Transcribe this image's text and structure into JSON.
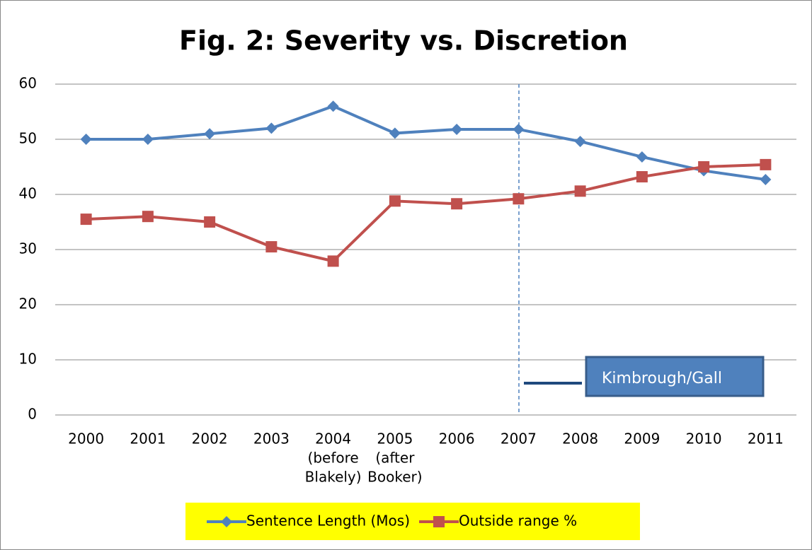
{
  "chart_data": {
    "type": "line",
    "title": "Fig. 2: Severity vs. Discretion",
    "categories": [
      [
        "2000"
      ],
      [
        "2001"
      ],
      [
        "2002"
      ],
      [
        "2003"
      ],
      [
        "2004",
        "(before",
        "Blakely)"
      ],
      [
        "2005",
        "(after",
        "Booker)"
      ],
      [
        "2006"
      ],
      [
        "2007"
      ],
      [
        "2008"
      ],
      [
        "2009"
      ],
      [
        "2010"
      ],
      [
        "2011"
      ]
    ],
    "series": [
      {
        "name": "Sentence Length (Mos)",
        "color": "#4f81bd",
        "marker": "diamond",
        "values": [
          50,
          50,
          51,
          52,
          56,
          51.1,
          51.8,
          51.8,
          49.6,
          46.8,
          44.3,
          42.7
        ]
      },
      {
        "name": "Outside range %",
        "color": "#c0504d",
        "marker": "square",
        "values": [
          35.5,
          36,
          35,
          30.5,
          27.9,
          38.8,
          38.3,
          39.2,
          40.6,
          43.2,
          45,
          45.4
        ]
      }
    ],
    "ylim": [
      0,
      60
    ],
    "yticks": [
      0,
      10,
      20,
      30,
      40,
      50,
      60
    ],
    "grid": true,
    "legend": "bottom",
    "annotation": "Kimbrough/Gall"
  }
}
